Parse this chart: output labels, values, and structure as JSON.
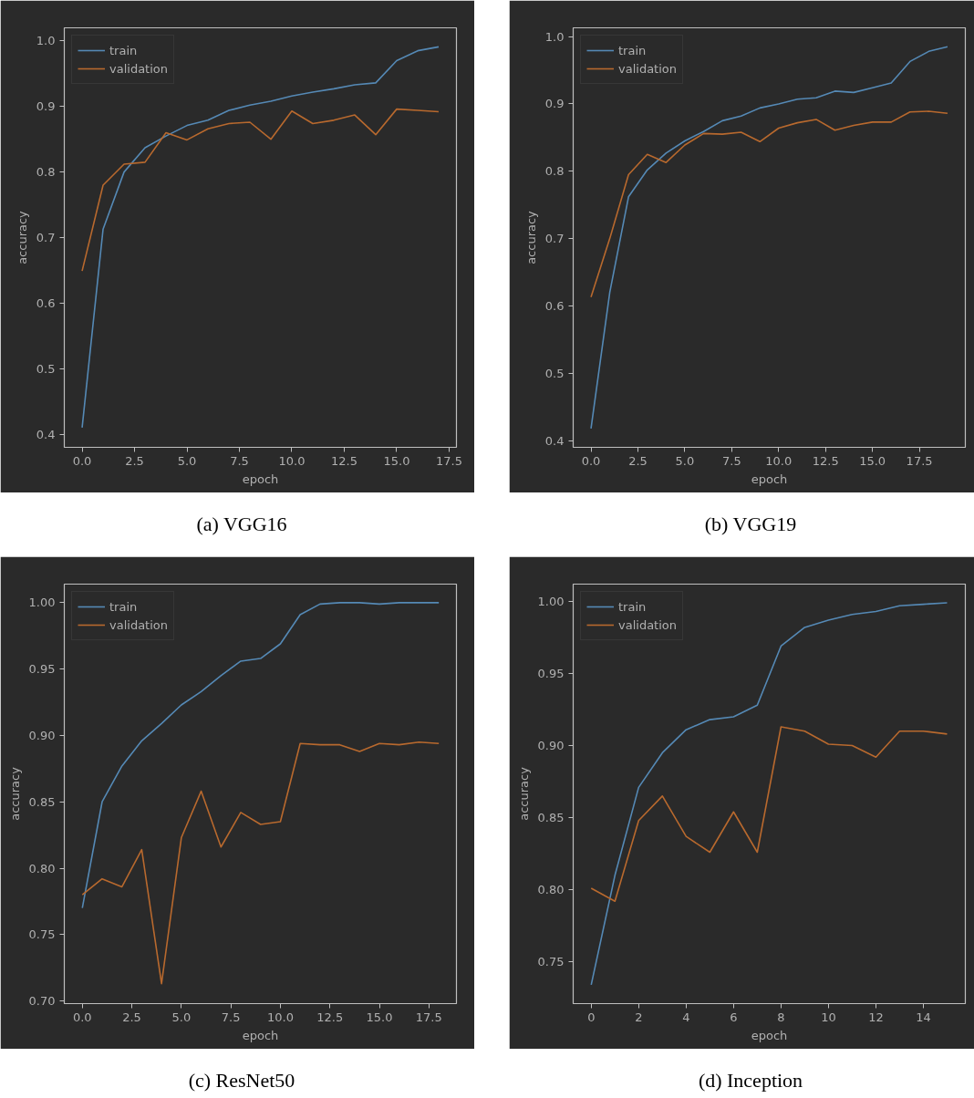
{
  "chart_data": [
    {
      "type": "line",
      "title": "(a) VGG16",
      "xlabel": "epoch",
      "ylabel": "accuracy",
      "legend": "top left",
      "grid": false,
      "x": [
        0,
        1,
        2,
        3,
        4,
        5,
        6,
        7,
        8,
        9,
        10,
        11,
        12,
        13,
        14,
        15,
        16,
        17
      ],
      "xlim": [
        -0.85,
        17.85
      ],
      "xticks": [
        {
          "value": 0,
          "label": "0.0"
        },
        2.5,
        {
          "value": 5,
          "label": "5.0"
        },
        7.5,
        {
          "value": 10,
          "label": "10.0"
        },
        12.5,
        {
          "value": 15,
          "label": "15.0"
        },
        17.5
      ],
      "ylim": [
        0.38,
        1.02
      ],
      "yticks": [
        0.4,
        0.5,
        0.6,
        0.7,
        0.8,
        0.9,
        {
          "value": 1,
          "label": "1.0"
        }
      ],
      "series": [
        {
          "name": "train",
          "color": "#5589b5",
          "values": [
            0.41,
            0.713,
            0.8,
            0.837,
            0.855,
            0.871,
            0.879,
            0.894,
            0.902,
            0.908,
            0.916,
            0.922,
            0.927,
            0.933,
            0.936,
            0.97,
            0.985,
            0.991
          ]
        },
        {
          "name": "validation",
          "color": "#b8692e",
          "values": [
            0.649,
            0.78,
            0.812,
            0.815,
            0.86,
            0.849,
            0.866,
            0.874,
            0.876,
            0.85,
            0.893,
            0.874,
            0.879,
            0.887,
            0.857,
            0.896,
            0.894,
            0.892
          ]
        }
      ]
    },
    {
      "type": "line",
      "title": "(b) VGG19",
      "xlabel": "epoch",
      "ylabel": "accuracy",
      "legend": "top left",
      "grid": false,
      "x": [
        0,
        1,
        2,
        3,
        4,
        5,
        6,
        7,
        8,
        9,
        10,
        11,
        12,
        13,
        14,
        15,
        16,
        17,
        18,
        19
      ],
      "xlim": [
        -0.95,
        19.95
      ],
      "xticks": [
        {
          "value": 0,
          "label": "0.0"
        },
        2.5,
        {
          "value": 5,
          "label": "5.0"
        },
        7.5,
        {
          "value": 10,
          "label": "10.0"
        },
        12.5,
        {
          "value": 15,
          "label": "15.0"
        },
        17.5
      ],
      "ylim": [
        0.39,
        1.013
      ],
      "yticks": [
        0.4,
        0.5,
        0.6,
        0.7,
        0.8,
        0.9,
        {
          "value": 1,
          "label": "1.0"
        }
      ],
      "series": [
        {
          "name": "train",
          "color": "#5589b5",
          "values": [
            0.418,
            0.62,
            0.762,
            0.802,
            0.827,
            0.845,
            0.859,
            0.875,
            0.882,
            0.894,
            0.9,
            0.907,
            0.909,
            0.919,
            0.917,
            0.924,
            0.931,
            0.963,
            0.978,
            0.985
          ]
        },
        {
          "name": "validation",
          "color": "#b8692e",
          "values": [
            0.613,
            0.7,
            0.795,
            0.825,
            0.813,
            0.839,
            0.856,
            0.855,
            0.858,
            0.844,
            0.864,
            0.872,
            0.877,
            0.861,
            0.868,
            0.873,
            0.873,
            0.888,
            0.889,
            0.886
          ]
        }
      ]
    },
    {
      "type": "line",
      "title": "(c) ResNet50",
      "xlabel": "epoch",
      "ylabel": "accuracy",
      "legend": "top left",
      "grid": false,
      "x": [
        0,
        1,
        2,
        3,
        4,
        5,
        6,
        7,
        8,
        9,
        10,
        11,
        12,
        13,
        14,
        15,
        16,
        17,
        18
      ],
      "xlim": [
        -0.91,
        18.89
      ],
      "xticks": [
        {
          "value": 0,
          "label": "0.0"
        },
        2.5,
        {
          "value": 5,
          "label": "5.0"
        },
        7.5,
        {
          "value": 10,
          "label": "10.0"
        },
        12.5,
        {
          "value": 15,
          "label": "15.0"
        },
        17.5
      ],
      "ylim": [
        0.698,
        1.014
      ],
      "yticks": [
        {
          "value": 0.7,
          "label": "0.70"
        },
        0.75,
        {
          "value": 0.8,
          "label": "0.80"
        },
        0.85,
        {
          "value": 0.9,
          "label": "0.90"
        },
        0.95,
        {
          "value": 1,
          "label": "1.00"
        }
      ],
      "series": [
        {
          "name": "train",
          "color": "#5589b5",
          "values": [
            0.77,
            0.85,
            0.877,
            0.896,
            0.909,
            0.923,
            0.933,
            0.945,
            0.956,
            0.958,
            0.969,
            0.991,
            0.999,
            1.0,
            1.0,
            0.999,
            1.0,
            1.0,
            1.0
          ]
        },
        {
          "name": "validation",
          "color": "#b8692e",
          "values": [
            0.78,
            0.792,
            0.786,
            0.814,
            0.713,
            0.823,
            0.858,
            0.816,
            0.842,
            0.833,
            0.835,
            0.894,
            0.893,
            0.893,
            0.888,
            0.894,
            0.893,
            0.895,
            0.894
          ]
        }
      ]
    },
    {
      "type": "line",
      "title": "(d) Inception",
      "xlabel": "epoch",
      "ylabel": "accuracy",
      "legend": "top left",
      "grid": false,
      "x": [
        0,
        1,
        2,
        3,
        4,
        5,
        6,
        7,
        8,
        9,
        10,
        11,
        12,
        13,
        14,
        15
      ],
      "xlim": [
        -0.76,
        15.77
      ],
      "xticks": [
        0,
        2,
        4,
        6,
        8,
        10,
        12,
        14
      ],
      "ylim": [
        0.721,
        1.012
      ],
      "yticks": [
        0.75,
        {
          "value": 0.8,
          "label": "0.80"
        },
        0.85,
        {
          "value": 0.9,
          "label": "0.90"
        },
        0.95,
        {
          "value": 1,
          "label": "1.00"
        }
      ],
      "series": [
        {
          "name": "train",
          "color": "#5589b5",
          "values": [
            0.734,
            0.81,
            0.871,
            0.895,
            0.911,
            0.918,
            0.92,
            0.928,
            0.969,
            0.982,
            0.987,
            0.991,
            0.993,
            0.997,
            0.998,
            0.999
          ]
        },
        {
          "name": "validation",
          "color": "#b8692e",
          "values": [
            0.801,
            0.792,
            0.848,
            0.865,
            0.837,
            0.826,
            0.854,
            0.826,
            0.913,
            0.91,
            0.901,
            0.9,
            0.892,
            0.91,
            0.91,
            0.908
          ]
        }
      ]
    }
  ]
}
